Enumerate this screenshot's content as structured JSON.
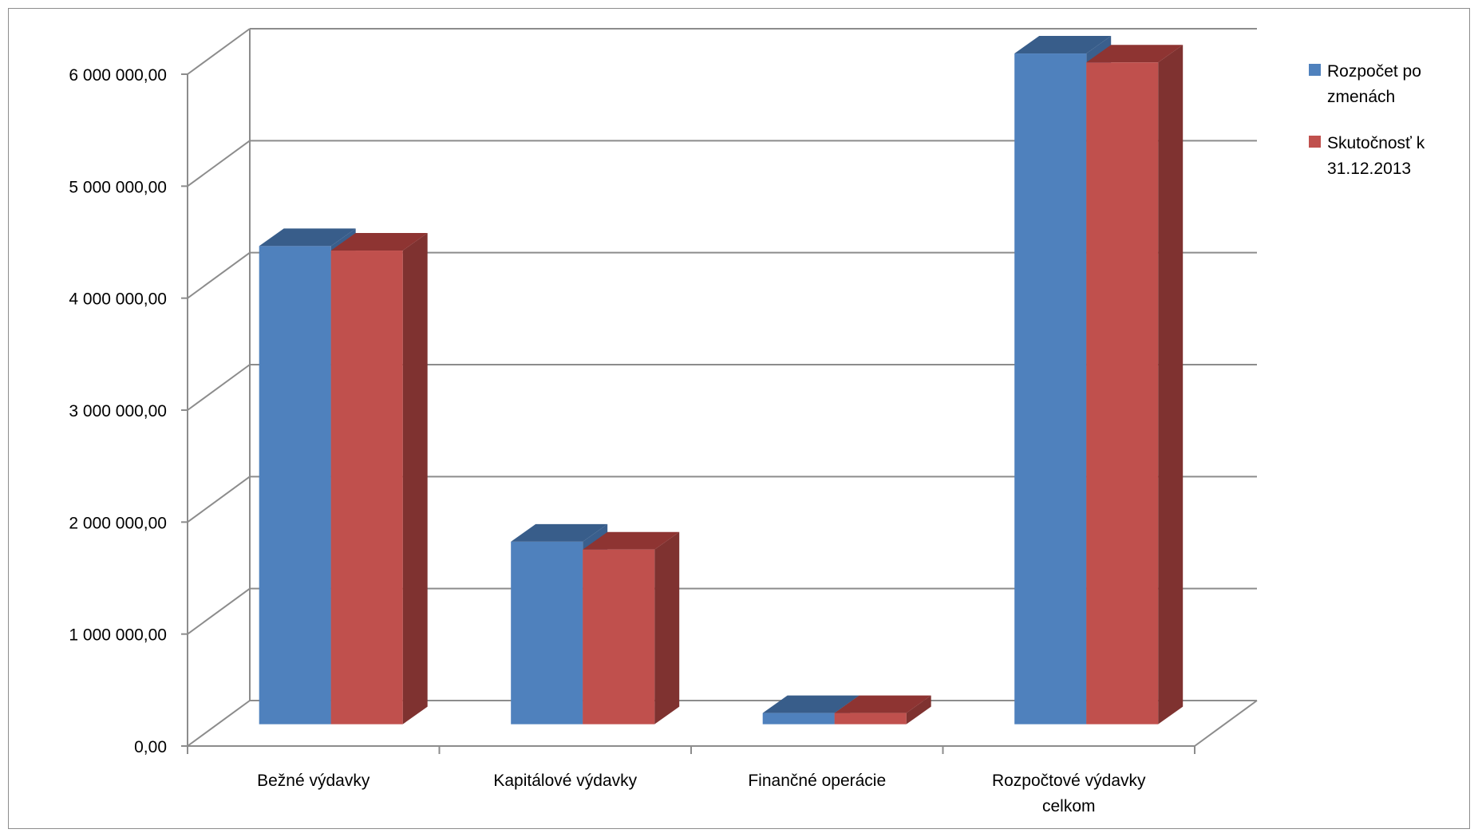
{
  "chart_data": {
    "type": "bar",
    "categories": [
      [
        "Bežné výdavky"
      ],
      [
        "Kapitálové výdavky"
      ],
      [
        "Finančné operácie"
      ],
      [
        "Rozpočtové výdavky",
        "celkom"
      ]
    ],
    "series": [
      {
        "name": [
          "Rozpočet po",
          "zmenách"
        ],
        "color": "#4F81BD",
        "top_color": "#385D8A",
        "side_color": "#3A5F8D",
        "values": [
          4270000,
          1630000,
          100000,
          5990000
        ]
      },
      {
        "name": [
          "Skutočnosť k",
          "31.12.2013"
        ],
        "color": "#C0504D",
        "top_color": "#8E3432",
        "side_color": "#7F3230",
        "values": [
          4230000,
          1560000,
          100000,
          5910000
        ]
      }
    ],
    "y_ticks": [
      "0,00",
      "1 000 000,00",
      "2 000 000,00",
      "3 000 000,00",
      "4 000 000,00",
      "5 000 000,00",
      "6 000 000,00"
    ],
    "ylim": [
      0,
      6000000
    ],
    "grid": true,
    "legend_position": "top-right"
  }
}
